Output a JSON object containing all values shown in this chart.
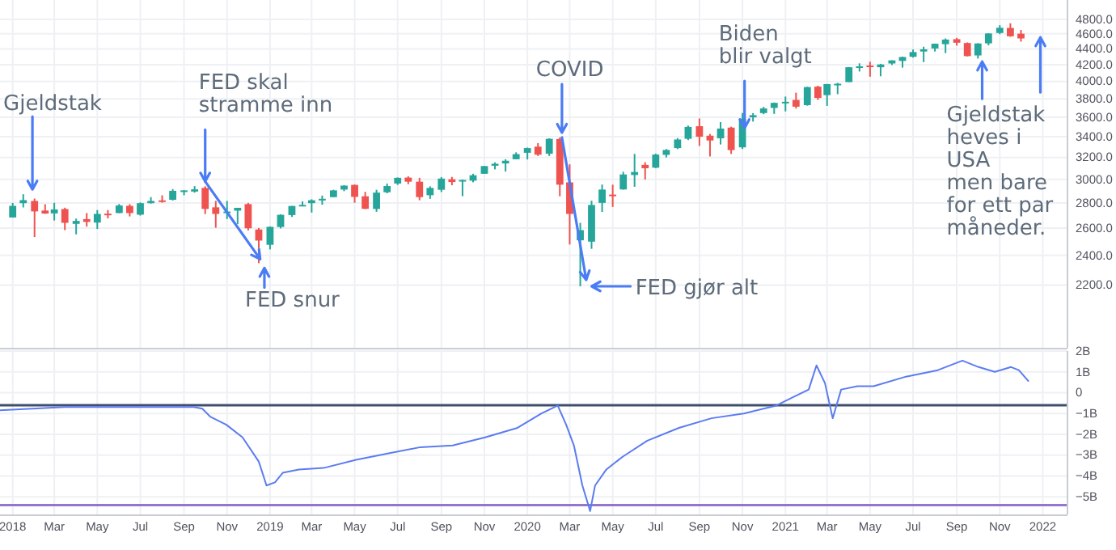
{
  "chart_data": [
    {
      "type": "candlestick",
      "log": true,
      "grid": true,
      "tick_labels": "y",
      "xlim": [
        "2017-12-14",
        "2022-02-05"
      ],
      "xticks": [
        {
          "value": "2018-01-01",
          "label": null
        },
        {
          "value": "2018-03-01",
          "label": null
        },
        {
          "value": "2018-05-01",
          "label": null
        },
        {
          "value": "2018-07-01",
          "label": null
        },
        {
          "value": "2018-09-01",
          "label": null
        },
        {
          "value": "2018-11-01",
          "label": null
        },
        {
          "value": "2019-01-01",
          "label": null
        },
        {
          "value": "2019-03-01",
          "label": null
        },
        {
          "value": "2019-05-01",
          "label": null
        },
        {
          "value": "2019-07-01",
          "label": null
        },
        {
          "value": "2019-09-01",
          "label": null
        },
        {
          "value": "2019-11-01",
          "label": null
        },
        {
          "value": "2020-01-01",
          "label": null
        },
        {
          "value": "2020-03-01",
          "label": null
        },
        {
          "value": "2020-05-01",
          "label": null
        },
        {
          "value": "2020-07-01",
          "label": null
        },
        {
          "value": "2020-09-01",
          "label": null
        },
        {
          "value": "2020-11-01",
          "label": null
        },
        {
          "value": "2021-01-01",
          "label": null
        },
        {
          "value": "2021-03-01",
          "label": null
        },
        {
          "value": "2021-05-01",
          "label": null
        },
        {
          "value": "2021-07-01",
          "label": null
        },
        {
          "value": "2021-09-01",
          "label": null
        },
        {
          "value": "2021-11-01",
          "label": null
        },
        {
          "value": "2022-01-01",
          "label": null
        }
      ],
      "ylim": [
        1830,
        5080
      ],
      "yticks": [
        {
          "value": 4800,
          "label": "4800.0"
        },
        {
          "value": 4600,
          "label": "4600.0"
        },
        {
          "value": 4400,
          "label": "4400.0"
        },
        {
          "value": 4200,
          "label": "4200.0"
        },
        {
          "value": 4000,
          "label": "4000.0"
        },
        {
          "value": 3800,
          "label": "3800.0"
        },
        {
          "value": 3600,
          "label": "3600.0"
        },
        {
          "value": 3400,
          "label": "3400.0"
        },
        {
          "value": 3200,
          "label": "3200.0"
        },
        {
          "value": 3000,
          "label": "3000.0"
        },
        {
          "value": 2800,
          "label": "2800.0"
        },
        {
          "value": 2600,
          "label": "2600.0"
        },
        {
          "value": 2400,
          "label": "2400.0"
        },
        {
          "value": 2200,
          "label": "2200.0"
        }
      ],
      "x": [
        "2018-01-01",
        "2018-01-16",
        "2018-02-01",
        "2018-02-16",
        "2018-03-01",
        "2018-03-16",
        "2018-04-01",
        "2018-04-16",
        "2018-05-01",
        "2018-05-16",
        "2018-06-01",
        "2018-06-16",
        "2018-07-01",
        "2018-07-16",
        "2018-08-01",
        "2018-08-16",
        "2018-09-01",
        "2018-09-16",
        "2018-10-01",
        "2018-10-16",
        "2018-11-01",
        "2018-11-16",
        "2018-12-01",
        "2018-12-16",
        "2019-01-01",
        "2019-01-16",
        "2019-02-01",
        "2019-02-16",
        "2019-03-01",
        "2019-03-16",
        "2019-04-01",
        "2019-04-16",
        "2019-05-01",
        "2019-05-16",
        "2019-06-01",
        "2019-06-16",
        "2019-07-01",
        "2019-07-16",
        "2019-08-01",
        "2019-08-16",
        "2019-09-01",
        "2019-09-16",
        "2019-10-01",
        "2019-10-16",
        "2019-11-01",
        "2019-11-16",
        "2019-12-01",
        "2019-12-16",
        "2020-01-01",
        "2020-01-16",
        "2020-02-01",
        "2020-02-16",
        "2020-03-01",
        "2020-03-16",
        "2020-04-01",
        "2020-04-16",
        "2020-05-01",
        "2020-05-16",
        "2020-06-01",
        "2020-06-16",
        "2020-07-01",
        "2020-07-16",
        "2020-08-01",
        "2020-08-16",
        "2020-09-01",
        "2020-09-16",
        "2020-10-01",
        "2020-10-16",
        "2020-11-01",
        "2020-11-16",
        "2020-12-01",
        "2020-12-16",
        "2021-01-01",
        "2021-01-16",
        "2021-02-01",
        "2021-02-16",
        "2021-03-01",
        "2021-03-16",
        "2021-04-01",
        "2021-04-16",
        "2021-05-01",
        "2021-05-16",
        "2021-06-01",
        "2021-06-16",
        "2021-07-01",
        "2021-07-16",
        "2021-08-01",
        "2021-08-16",
        "2021-09-01",
        "2021-09-16",
        "2021-10-01",
        "2021-10-16",
        "2021-11-01",
        "2021-11-16",
        "2021-12-01"
      ],
      "ohlc": [
        [
          2683,
          2800,
          2683,
          2776
        ],
        [
          2798,
          2872,
          2763,
          2823
        ],
        [
          2816,
          2836,
          2533,
          2731
        ],
        [
          2738,
          2789,
          2711,
          2714
        ],
        [
          2715,
          2801,
          2659,
          2747
        ],
        [
          2750,
          2761,
          2585,
          2641
        ],
        [
          2633,
          2674,
          2553,
          2656
        ],
        [
          2670,
          2718,
          2612,
          2648
        ],
        [
          2643,
          2742,
          2594,
          2711
        ],
        [
          2713,
          2742,
          2676,
          2705
        ],
        [
          2718,
          2791,
          2717,
          2779
        ],
        [
          2776,
          2790,
          2691,
          2718
        ],
        [
          2705,
          2804,
          2698,
          2798
        ],
        [
          2798,
          2848,
          2795,
          2816
        ],
        [
          2821,
          2863,
          2802,
          2818
        ],
        [
          2826,
          2916,
          2820,
          2901
        ],
        [
          2896,
          2906,
          2864,
          2905
        ],
        [
          2895,
          2941,
          2886,
          2914
        ],
        [
          2926,
          2940,
          2710,
          2751
        ],
        [
          2764,
          2817,
          2603,
          2711
        ],
        [
          2717,
          2816,
          2671,
          2730
        ],
        [
          2737,
          2760,
          2631,
          2760
        ],
        [
          2790,
          2800,
          2583,
          2599
        ],
        [
          2590,
          2601,
          2346,
          2507
        ],
        [
          2476,
          2613,
          2443,
          2610
        ],
        [
          2609,
          2708,
          2598,
          2704
        ],
        [
          2702,
          2775,
          2687,
          2775
        ],
        [
          2780,
          2813,
          2773,
          2784
        ],
        [
          2798,
          2830,
          2722,
          2822
        ],
        [
          2823,
          2861,
          2785,
          2834
        ],
        [
          2848,
          2910,
          2848,
          2905
        ],
        [
          2912,
          2949,
          2898,
          2946
        ],
        [
          2952,
          2955,
          2801,
          2850
        ],
        [
          2855,
          2892,
          2750,
          2752
        ],
        [
          2751,
          2910,
          2728,
          2886
        ],
        [
          2889,
          2964,
          2880,
          2942
        ],
        [
          2964,
          3017,
          2952,
          3014
        ],
        [
          3016,
          3028,
          2958,
          2980
        ],
        [
          2980,
          3014,
          2822,
          2848
        ],
        [
          2864,
          2940,
          2834,
          2926
        ],
        [
          2910,
          3021,
          2891,
          3007
        ],
        [
          3001,
          3022,
          2949,
          2977
        ],
        [
          2983,
          2998,
          2856,
          2995
        ],
        [
          2989,
          3050,
          2975,
          3037
        ],
        [
          3050,
          3120,
          3050,
          3120
        ],
        [
          3123,
          3154,
          3090,
          3141
        ],
        [
          3144,
          3183,
          3070,
          3169
        ],
        [
          3183,
          3248,
          3183,
          3231
        ],
        [
          3244,
          3294,
          3181,
          3289
        ],
        [
          3303,
          3338,
          3214,
          3226
        ],
        [
          3235,
          3385,
          3214,
          3380
        ],
        [
          3378,
          3393,
          2855,
          2954
        ],
        [
          2974,
          3136,
          2478,
          2711
        ],
        [
          2509,
          2641,
          2192,
          2585
        ],
        [
          2499,
          2818,
          2447,
          2783
        ],
        [
          2800,
          2955,
          2727,
          2912
        ],
        [
          2869,
          2954,
          2767,
          2863
        ],
        [
          2913,
          3068,
          2911,
          3044
        ],
        [
          3039,
          3233,
          2936,
          3066
        ],
        [
          3131,
          3155,
          2999,
          3100
        ],
        [
          3105,
          3236,
          3101,
          3227
        ],
        [
          3224,
          3280,
          3200,
          3271
        ],
        [
          3289,
          3387,
          3279,
          3373
        ],
        [
          3380,
          3514,
          3367,
          3500
        ],
        [
          3507,
          3588,
          3310,
          3401
        ],
        [
          3411,
          3428,
          3209,
          3363
        ],
        [
          3385,
          3550,
          3324,
          3483
        ],
        [
          3493,
          3502,
          3233,
          3270
        ],
        [
          3296,
          3646,
          3280,
          3585
        ],
        [
          3600,
          3645,
          3555,
          3622
        ],
        [
          3645,
          3712,
          3633,
          3695
        ],
        [
          3701,
          3760,
          3636,
          3756
        ],
        [
          3764,
          3826,
          3663,
          3768
        ],
        [
          3788,
          3870,
          3694,
          3714
        ],
        [
          3731,
          3937,
          3725,
          3934
        ],
        [
          3939,
          3950,
          3789,
          3811
        ],
        [
          3842,
          3970,
          3723,
          3969
        ],
        [
          3973,
          3983,
          3853,
          3973
        ],
        [
          3992,
          4173,
          3992,
          4170
        ],
        [
          4174,
          4218,
          4118,
          4181
        ],
        [
          4191,
          4238,
          4056,
          4174
        ],
        [
          4170,
          4212,
          4061,
          4204
        ],
        [
          4216,
          4255,
          4198,
          4255
        ],
        [
          4248,
          4302,
          4165,
          4297
        ],
        [
          4300,
          4393,
          4290,
          4360
        ],
        [
          4367,
          4429,
          4233,
          4395
        ],
        [
          4406,
          4470,
          4367,
          4468
        ],
        [
          4462,
          4537,
          4347,
          4523
        ],
        [
          4528,
          4546,
          4443,
          4481
        ],
        [
          4477,
          4485,
          4305,
          4308
        ],
        [
          4317,
          4475,
          4278,
          4471
        ],
        [
          4473,
          4608,
          4447,
          4605
        ],
        [
          4611,
          4718,
          4595,
          4682
        ],
        [
          4680,
          4744,
          4560,
          4567
        ],
        [
          4602,
          4652,
          4495,
          4538
        ]
      ],
      "annotations": [
        {
          "text": "Gjeldstak",
          "x": "2018-01-29",
          "y": 2872
        },
        {
          "text": "FED skal\nstramme inn",
          "x": "2018-10-01",
          "y": 2940
        },
        {
          "text": "FED snur",
          "x": "2018-12-24",
          "y": 2346
        },
        {
          "text": "COVID",
          "x": "2020-02-19",
          "y": 3393
        },
        {
          "text": "FED gjør alt",
          "x": "2020-03-23",
          "y": 2192
        },
        {
          "text": "Biden\nblir valgt",
          "x": "2020-11-04",
          "y": 3440
        },
        {
          "text": "Gjeldstak\nheves i\nUSA\nmen bare\nfor ett par\nmåneder.",
          "x": "2021-10-07",
          "y": 4300
        }
      ]
    },
    {
      "type": "line",
      "grid": true,
      "xlim": [
        "2017-12-14",
        "2022-02-05"
      ],
      "xticks": [
        {
          "value": "2018-01-01",
          "label": "2018"
        },
        {
          "value": "2018-03-01",
          "label": "Mar"
        },
        {
          "value": "2018-05-01",
          "label": "May"
        },
        {
          "value": "2018-07-01",
          "label": "Jul"
        },
        {
          "value": "2018-09-01",
          "label": "Sep"
        },
        {
          "value": "2018-11-01",
          "label": "Nov"
        },
        {
          "value": "2019-01-01",
          "label": "2019"
        },
        {
          "value": "2019-03-01",
          "label": "Mar"
        },
        {
          "value": "2019-05-01",
          "label": "May"
        },
        {
          "value": "2019-07-01",
          "label": "Jul"
        },
        {
          "value": "2019-09-01",
          "label": "Sep"
        },
        {
          "value": "2019-11-01",
          "label": "Nov"
        },
        {
          "value": "2020-01-01",
          "label": "2020"
        },
        {
          "value": "2020-03-01",
          "label": "Mar"
        },
        {
          "value": "2020-05-01",
          "label": "May"
        },
        {
          "value": "2020-07-01",
          "label": "Jul"
        },
        {
          "value": "2020-09-01",
          "label": "Sep"
        },
        {
          "value": "2020-11-01",
          "label": "Nov"
        },
        {
          "value": "2021-01-01",
          "label": "2021"
        },
        {
          "value": "2021-03-01",
          "label": "Mar"
        },
        {
          "value": "2021-05-01",
          "label": "May"
        },
        {
          "value": "2021-07-01",
          "label": "Jul"
        },
        {
          "value": "2021-09-01",
          "label": "Sep"
        },
        {
          "value": "2021-11-01",
          "label": "Nov"
        },
        {
          "value": "2022-01-01",
          "label": "2022"
        }
      ],
      "ylim": [
        -5.85,
        2
      ],
      "yticks": [
        {
          "value": 2,
          "label": "2B"
        },
        {
          "value": 1,
          "label": "1B"
        },
        0,
        {
          "value": -1,
          "label": "−1B"
        },
        {
          "value": -2,
          "label": "−2B"
        },
        {
          "value": -3,
          "label": "−3B"
        },
        {
          "value": -4,
          "label": "−4B"
        },
        {
          "value": -5,
          "label": "−5B"
        }
      ],
      "ref_lines": [
        {
          "axis": "y",
          "value": -0.6,
          "color": "#3f4f6b"
        },
        {
          "axis": "y",
          "value": -5.4,
          "color": "#9575cd"
        }
      ],
      "series": [
        {
          "color": "#5b7cf0",
          "x": [
            "2017-12-14",
            "2018-01-29",
            "2018-03-16",
            "2018-05-01",
            "2018-06-16",
            "2018-07-31",
            "2018-09-15",
            "2018-09-27",
            "2018-10-08",
            "2018-10-31",
            "2018-11-23",
            "2018-12-16",
            "2018-12-27",
            "2019-01-08",
            "2019-01-19",
            "2019-02-11",
            "2019-03-18",
            "2019-05-03",
            "2019-06-18",
            "2019-08-02",
            "2019-09-17",
            "2019-11-02",
            "2019-12-18",
            "2020-01-21",
            "2020-02-13",
            "2020-02-25",
            "2020-03-07",
            "2020-03-19",
            "2020-03-30",
            "2020-04-06",
            "2020-04-22",
            "2020-05-15",
            "2020-06-19",
            "2020-08-03",
            "2020-09-18",
            "2020-11-03",
            "2020-12-19",
            "2021-01-11",
            "2021-02-03",
            "2021-02-14",
            "2021-02-26",
            "2021-03-09",
            "2021-03-21",
            "2021-04-13",
            "2021-05-06",
            "2021-06-21",
            "2021-08-05",
            "2021-09-09",
            "2021-10-02",
            "2021-10-25",
            "2021-11-17",
            "2021-11-28",
            "2021-12-12"
          ],
          "values": [
            -0.85,
            -0.77,
            -0.69,
            -0.69,
            -0.69,
            -0.69,
            -0.69,
            -0.77,
            -1.15,
            -1.54,
            -2.15,
            -3.31,
            -4.46,
            -4.31,
            -3.85,
            -3.69,
            -3.62,
            -3.23,
            -2.92,
            -2.62,
            -2.54,
            -2.15,
            -1.69,
            -1.0,
            -0.62,
            -1.54,
            -2.54,
            -4.46,
            -5.69,
            -4.46,
            -3.69,
            -3.08,
            -2.31,
            -1.69,
            -1.23,
            -1.0,
            -0.62,
            -0.23,
            0.15,
            1.31,
            0.46,
            -1.23,
            0.15,
            0.31,
            0.31,
            0.77,
            1.08,
            1.54,
            1.23,
            1.0,
            1.23,
            1.08,
            0.54
          ]
        }
      ]
    }
  ]
}
